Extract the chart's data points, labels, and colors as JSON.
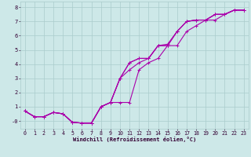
{
  "background_color": "#cde8e8",
  "grid_color": "#aacccc",
  "line_color": "#aa00aa",
  "xlabel": "Windchill (Refroidissement éolien,°C)",
  "ylim": [
    -0.55,
    8.4
  ],
  "xlim": [
    -0.5,
    23.5
  ],
  "yticks": [
    0,
    1,
    2,
    3,
    4,
    5,
    6,
    7,
    8
  ],
  "ytick_labels": [
    "-0",
    "1",
    "2",
    "3",
    "4",
    "5",
    "6",
    "7",
    "8"
  ],
  "xticks": [
    0,
    1,
    2,
    3,
    4,
    5,
    6,
    7,
    8,
    9,
    10,
    11,
    12,
    13,
    14,
    15,
    16,
    17,
    18,
    19,
    20,
    21,
    22,
    23
  ],
  "series": [
    [
      0.7,
      0.3,
      0.3,
      0.6,
      0.5,
      -0.1,
      -0.15,
      -0.15,
      1.0,
      1.3,
      1.3,
      1.3,
      3.6,
      4.1,
      4.4,
      5.3,
      5.3,
      6.3,
      6.7,
      7.1,
      7.1,
      7.5,
      7.8,
      7.8
    ],
    [
      0.7,
      0.3,
      0.3,
      0.6,
      0.5,
      -0.1,
      -0.15,
      -0.15,
      1.0,
      1.3,
      3.0,
      3.6,
      4.1,
      4.4,
      5.3,
      5.3,
      6.3,
      7.0,
      7.1,
      7.1,
      7.5,
      7.5,
      7.8,
      7.8
    ],
    [
      0.7,
      0.3,
      0.3,
      0.6,
      0.5,
      -0.1,
      -0.15,
      -0.15,
      1.0,
      1.3,
      3.0,
      4.1,
      4.4,
      4.4,
      5.3,
      5.4,
      6.3,
      7.0,
      7.1,
      7.1,
      7.5,
      7.5,
      7.8,
      7.8
    ],
    [
      0.7,
      0.3,
      0.3,
      0.6,
      0.5,
      -0.1,
      -0.15,
      -0.15,
      1.0,
      1.3,
      3.0,
      4.1,
      4.4,
      4.4,
      5.3,
      5.3,
      6.3,
      7.0,
      7.1,
      7.1,
      7.5,
      7.5,
      7.8,
      7.8
    ]
  ],
  "figsize": [
    3.2,
    2.0
  ],
  "dpi": 100,
  "linewidth": 0.8,
  "markersize": 2.5,
  "xlabel_fontsize": 5.0,
  "tick_fontsize": 4.8
}
